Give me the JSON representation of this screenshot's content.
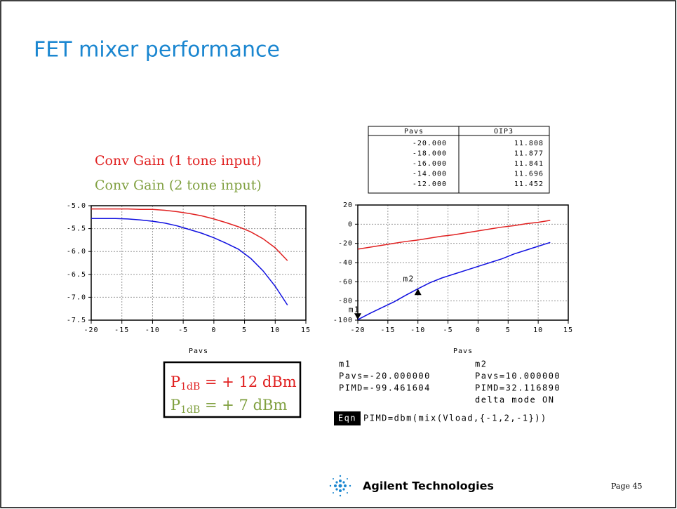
{
  "title": "FET mixer performance",
  "chart_data": [
    {
      "type": "line",
      "annotations": [
        {
          "text": "Conv Gain (1 tone input)",
          "color": "#e02020"
        },
        {
          "text": "Conv Gain (2 tone input)",
          "color": "#80a040"
        }
      ],
      "xlabel": "Pavs",
      "x": [
        -20,
        -18,
        -16,
        -14,
        -12,
        -10,
        -8,
        -6,
        -4,
        -2,
        0,
        2,
        4,
        6,
        8,
        10,
        12
      ],
      "series": [
        {
          "color": "#e02020",
          "values": [
            -5.07,
            -5.07,
            -5.07,
            -5.07,
            -5.08,
            -5.08,
            -5.1,
            -5.13,
            -5.17,
            -5.22,
            -5.29,
            -5.37,
            -5.46,
            -5.57,
            -5.72,
            -5.92,
            -6.2
          ]
        },
        {
          "color": "#1010e0",
          "values": [
            -5.28,
            -5.28,
            -5.28,
            -5.29,
            -5.31,
            -5.34,
            -5.38,
            -5.44,
            -5.52,
            -5.6,
            -5.7,
            -5.82,
            -5.95,
            -6.15,
            -6.42,
            -6.76,
            -7.17
          ]
        }
      ],
      "xlim": [
        -20,
        15
      ],
      "xticks": [
        -20,
        -15,
        -10,
        -5,
        0,
        5,
        10,
        15
      ],
      "ylim": [
        -7.5,
        -5
      ],
      "yticks": [
        {
          "value": -5,
          "label": "-5.0"
        },
        -5.5,
        {
          "value": -6,
          "label": "-6.0"
        },
        -6.5,
        {
          "value": -7,
          "label": "-7.0"
        },
        -7.5
      ],
      "grid": true
    },
    {
      "type": "line",
      "xlabel": "Pavs",
      "x": [
        -20,
        -18,
        -16,
        -14,
        -12,
        -10,
        -8,
        -6,
        -4,
        -2,
        0,
        2,
        4,
        6,
        8,
        10,
        12
      ],
      "series": [
        {
          "color": "#e02020",
          "values": [
            -26,
            -24,
            -22,
            -20,
            -18,
            -16.5,
            -14.5,
            -12.5,
            -11,
            -9,
            -7,
            -5,
            -3,
            -1.5,
            0.5,
            2,
            4
          ]
        },
        {
          "color": "#1010e0",
          "values": [
            -99.5,
            -93,
            -87,
            -81,
            -74,
            -67.3,
            -61,
            -56,
            -52,
            -48,
            -44,
            -40,
            -36,
            -31,
            -27,
            -23,
            -19
          ]
        }
      ],
      "markers": [
        {
          "label": "m1",
          "x": -20,
          "y": -99.461604
        },
        {
          "label": "m2",
          "x": -10,
          "y": -67.3
        }
      ],
      "xlim": [
        -20,
        15
      ],
      "xticks": [
        -20,
        -15,
        -10,
        -5,
        0,
        5,
        10,
        15
      ],
      "ylim": [
        -100,
        20
      ],
      "yticks": [
        20,
        0,
        -20,
        -40,
        -60,
        -80,
        -100
      ],
      "grid": true
    }
  ],
  "table": {
    "columns": [
      "Pavs",
      "OIP3"
    ],
    "rows": [
      [
        "-20.000",
        "11.808"
      ],
      [
        "-18.000",
        "11.877"
      ],
      [
        "-16.000",
        "11.841"
      ],
      [
        "-14.000",
        "11.696"
      ],
      [
        "-12.000",
        "11.452"
      ]
    ]
  },
  "p1db": [
    {
      "base": "P",
      "sub": "1dB",
      "rest": " = + 12 dBm",
      "color": "#e02020"
    },
    {
      "base": "P",
      "sub": "1dB",
      "rest": " = + 7 dBm",
      "color": "#80a040"
    }
  ],
  "readout": {
    "m1": [
      "m1",
      "Pavs=-20.000000",
      "PIMD=-99.461604"
    ],
    "m2": [
      "m2",
      "Pavs=10.000000",
      "PIMD=32.116890",
      "delta mode ON"
    ]
  },
  "equation": {
    "tag": "Eqn",
    "text": "PIMD=dbm(mix(Vload,{-1,2,-1}))"
  },
  "footer": {
    "company": "Agilent Technologies",
    "page": "Page 45"
  }
}
